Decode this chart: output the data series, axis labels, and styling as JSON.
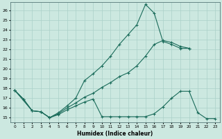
{
  "xlabel": "Humidex (Indice chaleur)",
  "background_color": "#cce8e0",
  "grid_color": "#aad0c8",
  "line_color": "#1a6b5a",
  "xlim": [
    -0.5,
    23.5
  ],
  "ylim": [
    14.5,
    26.8
  ],
  "curve_top_x": [
    0,
    1,
    2,
    3,
    4,
    5,
    6,
    7,
    8,
    9,
    10,
    11,
    12,
    13,
    14,
    15,
    16,
    17,
    18,
    19,
    20
  ],
  "curve_top_y": [
    17.8,
    16.9,
    15.7,
    15.6,
    15.0,
    15.5,
    16.2,
    17.0,
    18.8,
    19.5,
    20.3,
    21.3,
    22.5,
    23.5,
    24.5,
    26.6,
    25.7,
    22.8,
    22.5,
    22.1,
    22.1
  ],
  "curve_mid_x": [
    0,
    2,
    3,
    4,
    5,
    6,
    7,
    8,
    9,
    10,
    11,
    12,
    13,
    14,
    15,
    16,
    17,
    18,
    19,
    20
  ],
  "curve_mid_y": [
    17.8,
    15.7,
    15.6,
    15.0,
    15.4,
    16.0,
    16.5,
    17.1,
    17.5,
    18.1,
    18.6,
    19.2,
    19.6,
    20.3,
    21.3,
    22.5,
    22.9,
    22.7,
    22.3,
    22.1
  ],
  "curve_bot_x": [
    0,
    1,
    2,
    3,
    4,
    5,
    6,
    7,
    8,
    9,
    10,
    11,
    12,
    13,
    14,
    15,
    16,
    17,
    18,
    19,
    20,
    21,
    22,
    23
  ],
  "curve_bot_y": [
    17.8,
    16.9,
    15.7,
    15.6,
    15.0,
    15.3,
    15.8,
    16.2,
    16.6,
    16.9,
    15.1,
    15.1,
    15.1,
    15.1,
    15.1,
    15.1,
    15.4,
    16.1,
    17.0,
    17.7,
    17.7,
    15.5,
    14.9,
    14.9
  ]
}
